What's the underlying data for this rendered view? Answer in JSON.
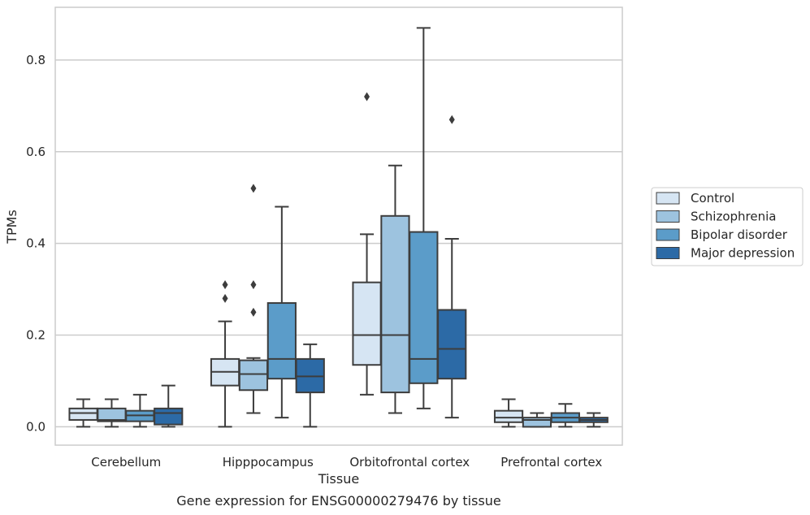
{
  "chart_data": {
    "type": "box",
    "caption": "Gene expression for ENSG00000279476 by tissue",
    "xlabel": "Tissue",
    "ylabel": "TPMs",
    "ylim": [
      -0.04,
      0.915
    ],
    "yticks": [
      "0.0",
      "0.2",
      "0.4",
      "0.6",
      "0.8"
    ],
    "grid": true,
    "legend_position": "right",
    "categories": [
      "Cerebellum",
      "Hipppocampus",
      "Orbitofrontal cortex",
      "Prefrontal cortex"
    ],
    "series": [
      {
        "name": "Control",
        "color": "#d6e5f3",
        "boxes": [
          {
            "whisker_low": 0.0,
            "q1": 0.015,
            "median": 0.03,
            "q3": 0.04,
            "whisker_high": 0.06,
            "outliers": []
          },
          {
            "whisker_low": 0.0,
            "q1": 0.09,
            "median": 0.12,
            "q3": 0.148,
            "whisker_high": 0.23,
            "outliers": [
              0.28,
              0.31
            ]
          },
          {
            "whisker_low": 0.07,
            "q1": 0.135,
            "median": 0.2,
            "q3": 0.315,
            "whisker_high": 0.42,
            "outliers": [
              0.72
            ]
          },
          {
            "whisker_low": 0.0,
            "q1": 0.01,
            "median": 0.02,
            "q3": 0.035,
            "whisker_high": 0.06,
            "outliers": []
          }
        ]
      },
      {
        "name": "Schizophrenia",
        "color": "#9dc3df",
        "boxes": [
          {
            "whisker_low": 0.0,
            "q1": 0.012,
            "median": 0.015,
            "q3": 0.04,
            "whisker_high": 0.06,
            "outliers": []
          },
          {
            "whisker_low": 0.03,
            "q1": 0.08,
            "median": 0.115,
            "q3": 0.145,
            "whisker_high": 0.15,
            "outliers": [
              0.25,
              0.31,
              0.52
            ]
          },
          {
            "whisker_low": 0.03,
            "q1": 0.075,
            "median": 0.2,
            "q3": 0.46,
            "whisker_high": 0.57,
            "outliers": []
          },
          {
            "whisker_low": 0.0,
            "q1": 0.0,
            "median": 0.015,
            "q3": 0.02,
            "whisker_high": 0.03,
            "outliers": []
          }
        ]
      },
      {
        "name": "Bipolar disorder",
        "color": "#5b9cc9",
        "boxes": [
          {
            "whisker_low": 0.0,
            "q1": 0.012,
            "median": 0.025,
            "q3": 0.035,
            "whisker_high": 0.07,
            "outliers": []
          },
          {
            "whisker_low": 0.02,
            "q1": 0.105,
            "median": 0.148,
            "q3": 0.27,
            "whisker_high": 0.48,
            "outliers": []
          },
          {
            "whisker_low": 0.04,
            "q1": 0.095,
            "median": 0.148,
            "q3": 0.425,
            "whisker_high": 0.87,
            "outliers": []
          },
          {
            "whisker_low": 0.0,
            "q1": 0.01,
            "median": 0.02,
            "q3": 0.03,
            "whisker_high": 0.05,
            "outliers": []
          }
        ]
      },
      {
        "name": "Major depression",
        "color": "#2c6aa6",
        "boxes": [
          {
            "whisker_low": 0.0,
            "q1": 0.005,
            "median": 0.03,
            "q3": 0.04,
            "whisker_high": 0.09,
            "outliers": []
          },
          {
            "whisker_low": 0.0,
            "q1": 0.075,
            "median": 0.11,
            "q3": 0.148,
            "whisker_high": 0.18,
            "outliers": []
          },
          {
            "whisker_low": 0.02,
            "q1": 0.105,
            "median": 0.17,
            "q3": 0.255,
            "whisker_high": 0.41,
            "outliers": [
              0.67
            ]
          },
          {
            "whisker_low": 0.0,
            "q1": 0.01,
            "median": 0.015,
            "q3": 0.02,
            "whisker_high": 0.03,
            "outliers": []
          }
        ]
      }
    ]
  }
}
